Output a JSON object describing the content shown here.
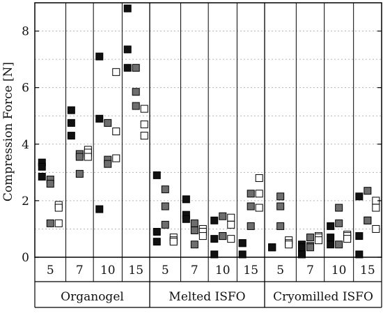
{
  "chart_data": {
    "type": "scatter",
    "ylabel": "Compression Force [N]",
    "ylim": [
      0,
      9
    ],
    "yticks": [
      0,
      2,
      4,
      6,
      8
    ],
    "grid": "horizontal dotted",
    "groups": [
      {
        "name": "Organogel",
        "subgroups": [
          {
            "label": "5",
            "points": [
              {
                "shade": "black",
                "values": [
                  3.35,
                  3.2,
                  2.85
                ]
              },
              {
                "shade": "gray",
                "values": [
                  2.75,
                  2.6,
                  1.2
                ]
              },
              {
                "shade": "white",
                "values": [
                  1.85,
                  1.75,
                  1.2
                ]
              }
            ]
          },
          {
            "label": "7",
            "points": [
              {
                "shade": "black",
                "values": [
                  5.2,
                  4.75,
                  4.3
                ]
              },
              {
                "shade": "gray",
                "values": [
                  3.65,
                  3.55,
                  2.95
                ]
              },
              {
                "shade": "white",
                "values": [
                  3.8,
                  3.7,
                  3.55
                ]
              }
            ]
          },
          {
            "label": "10",
            "points": [
              {
                "shade": "black",
                "values": [
                  7.1,
                  4.9,
                  1.7
                ]
              },
              {
                "shade": "gray",
                "values": [
                  4.75,
                  3.45,
                  3.3
                ]
              },
              {
                "shade": "white",
                "values": [
                  6.55,
                  4.45,
                  3.5
                ]
              }
            ]
          },
          {
            "label": "15",
            "points": [
              {
                "shade": "black",
                "values": [
                  8.8,
                  7.35,
                  6.7
                ]
              },
              {
                "shade": "gray",
                "values": [
                  6.7,
                  5.85,
                  5.35
                ]
              },
              {
                "shade": "white",
                "values": [
                  5.25,
                  4.7,
                  4.3
                ]
              }
            ]
          }
        ]
      },
      {
        "name": "Melted ISFO",
        "subgroups": [
          {
            "label": "5",
            "points": [
              {
                "shade": "black",
                "values": [
                  2.9,
                  0.9,
                  0.55
                ]
              },
              {
                "shade": "gray",
                "values": [
                  2.4,
                  1.8,
                  1.15
                ]
              },
              {
                "shade": "white",
                "values": [
                  0.7,
                  0.6,
                  0.55
                ]
              }
            ]
          },
          {
            "label": "7",
            "points": [
              {
                "shade": "black",
                "values": [
                  2.05,
                  1.5,
                  1.35
                ]
              },
              {
                "shade": "gray",
                "values": [
                  1.2,
                  0.95,
                  0.45
                ]
              },
              {
                "shade": "white",
                "values": [
                  1.0,
                  0.9,
                  0.75
                ]
              }
            ]
          },
          {
            "label": "10",
            "points": [
              {
                "shade": "black",
                "values": [
                  1.3,
                  0.65,
                  0.1
                ]
              },
              {
                "shade": "gray",
                "values": [
                  1.45,
                  0.75,
                  0.75
                ]
              },
              {
                "shade": "white",
                "values": [
                  1.4,
                  1.15,
                  0.65
                ]
              }
            ]
          },
          {
            "label": "15",
            "points": [
              {
                "shade": "black",
                "values": [
                  0.5,
                  0.5,
                  0.1
                ]
              },
              {
                "shade": "gray",
                "values": [
                  2.25,
                  1.8,
                  1.1
                ]
              },
              {
                "shade": "white",
                "values": [
                  2.8,
                  2.25,
                  1.75
                ]
              }
            ]
          }
        ]
      },
      {
        "name": "Cryomilled ISFO",
        "subgroups": [
          {
            "label": "5",
            "points": [
              {
                "shade": "black",
                "values": [
                  0.35,
                  0.35,
                  0.35
                ]
              },
              {
                "shade": "gray",
                "values": [
                  2.15,
                  1.8,
                  1.1
                ]
              },
              {
                "shade": "white",
                "values": [
                  0.6,
                  0.5,
                  0.45
                ]
              }
            ]
          },
          {
            "label": "7",
            "points": [
              {
                "shade": "black",
                "values": [
                  0.45,
                  0.35,
                  0.1
                ]
              },
              {
                "shade": "gray",
                "values": [
                  0.7,
                  0.4,
                  0.35
                ]
              },
              {
                "shade": "white",
                "values": [
                  0.75,
                  0.7,
                  0.6
                ]
              }
            ]
          },
          {
            "label": "10",
            "points": [
              {
                "shade": "black",
                "values": [
                  1.1,
                  0.7,
                  0.45
                ]
              },
              {
                "shade": "gray",
                "values": [
                  1.75,
                  1.2,
                  0.45
                ]
              },
              {
                "shade": "white",
                "values": [
                  0.8,
                  0.75,
                  0.65
                ]
              }
            ]
          },
          {
            "label": "15",
            "points": [
              {
                "shade": "black",
                "values": [
                  2.15,
                  0.75,
                  0.1
                ]
              },
              {
                "shade": "gray",
                "values": [
                  2.35,
                  1.3,
                  1.3
                ]
              },
              {
                "shade": "white",
                "values": [
                  2.0,
                  1.75,
                  1.0
                ]
              }
            ]
          }
        ]
      }
    ]
  },
  "colors": {
    "black": "#111111",
    "gray": "#6e6e6e",
    "white": "#ffffff",
    "grid": "#b5b5b5",
    "axis": "#000000"
  }
}
